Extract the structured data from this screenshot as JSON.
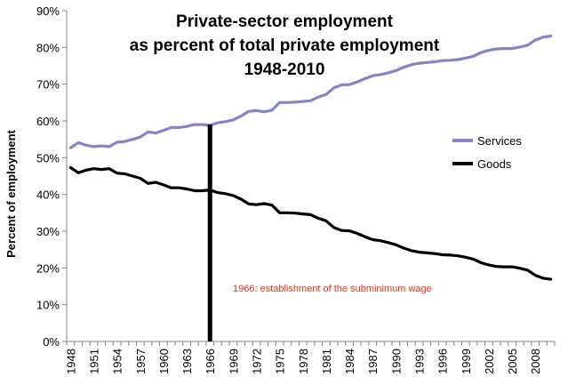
{
  "chart_data": {
    "type": "line",
    "title_lines": [
      "Private-sector employment",
      "as percent of total private employment",
      "1948-2010"
    ],
    "xlabel": "",
    "ylabel": "Percent of employment",
    "ylim": [
      0,
      90
    ],
    "yticks": [
      "0%",
      "10%",
      "20%",
      "30%",
      "40%",
      "50%",
      "60%",
      "70%",
      "80%",
      "90%"
    ],
    "xlim": [
      1948,
      2010
    ],
    "xtick_labels": [
      "1948",
      "1951",
      "1954",
      "1957",
      "1960",
      "1963",
      "1966",
      "1969",
      "1972",
      "1975",
      "1978",
      "1981",
      "1984",
      "1987",
      "1990",
      "1993",
      "1996",
      "1999",
      "2002",
      "2005",
      "2008"
    ],
    "x": [
      1948,
      1949,
      1950,
      1951,
      1952,
      1953,
      1954,
      1955,
      1956,
      1957,
      1958,
      1959,
      1960,
      1961,
      1962,
      1963,
      1964,
      1965,
      1966,
      1967,
      1968,
      1969,
      1970,
      1971,
      1972,
      1973,
      1974,
      1975,
      1976,
      1977,
      1978,
      1979,
      1980,
      1981,
      1982,
      1983,
      1984,
      1985,
      1986,
      1987,
      1988,
      1989,
      1990,
      1991,
      1992,
      1993,
      1994,
      1995,
      1996,
      1997,
      1998,
      1999,
      2000,
      2001,
      2002,
      2003,
      2004,
      2005,
      2006,
      2007,
      2008,
      2009,
      2010
    ],
    "series": [
      {
        "name": "Services",
        "color": "#8585c0",
        "values": [
          52.7,
          54.1,
          53.4,
          53.0,
          53.2,
          53.0,
          54.2,
          54.4,
          55.0,
          55.6,
          57.0,
          56.7,
          57.4,
          58.2,
          58.2,
          58.5,
          59.0,
          59.0,
          58.8,
          59.5,
          59.8,
          60.3,
          61.3,
          62.6,
          62.8,
          62.5,
          62.9,
          65.0,
          65.0,
          65.1,
          65.3,
          65.5,
          66.5,
          67.2,
          69.0,
          69.8,
          69.9,
          70.6,
          71.5,
          72.3,
          72.6,
          73.1,
          73.7,
          74.6,
          75.3,
          75.7,
          75.9,
          76.1,
          76.4,
          76.5,
          76.7,
          77.1,
          77.6,
          78.6,
          79.2,
          79.6,
          79.7,
          79.7,
          80.1,
          80.6,
          82.0,
          82.8,
          83.1
        ]
      },
      {
        "name": "Goods",
        "color": "#000000",
        "values": [
          47.3,
          45.9,
          46.6,
          47.0,
          46.8,
          47.0,
          45.8,
          45.6,
          45.0,
          44.4,
          43.0,
          43.3,
          42.6,
          41.8,
          41.8,
          41.5,
          41.0,
          41.0,
          41.2,
          40.5,
          40.2,
          39.7,
          38.7,
          37.4,
          37.2,
          37.5,
          37.1,
          35.0,
          35.0,
          34.9,
          34.7,
          34.5,
          33.5,
          32.8,
          31.0,
          30.2,
          30.1,
          29.4,
          28.5,
          27.7,
          27.4,
          26.9,
          26.3,
          25.4,
          24.7,
          24.3,
          24.1,
          23.9,
          23.6,
          23.5,
          23.3,
          22.9,
          22.4,
          21.4,
          20.8,
          20.4,
          20.3,
          20.3,
          19.9,
          19.4,
          18.0,
          17.2,
          16.9
        ]
      }
    ],
    "marker_line": {
      "x": 1966,
      "color": "#000000"
    },
    "annotation": {
      "text": "1966: establishment of the subminimum wage",
      "color": "#e8321e"
    },
    "legend_position": "right",
    "grid": false
  }
}
